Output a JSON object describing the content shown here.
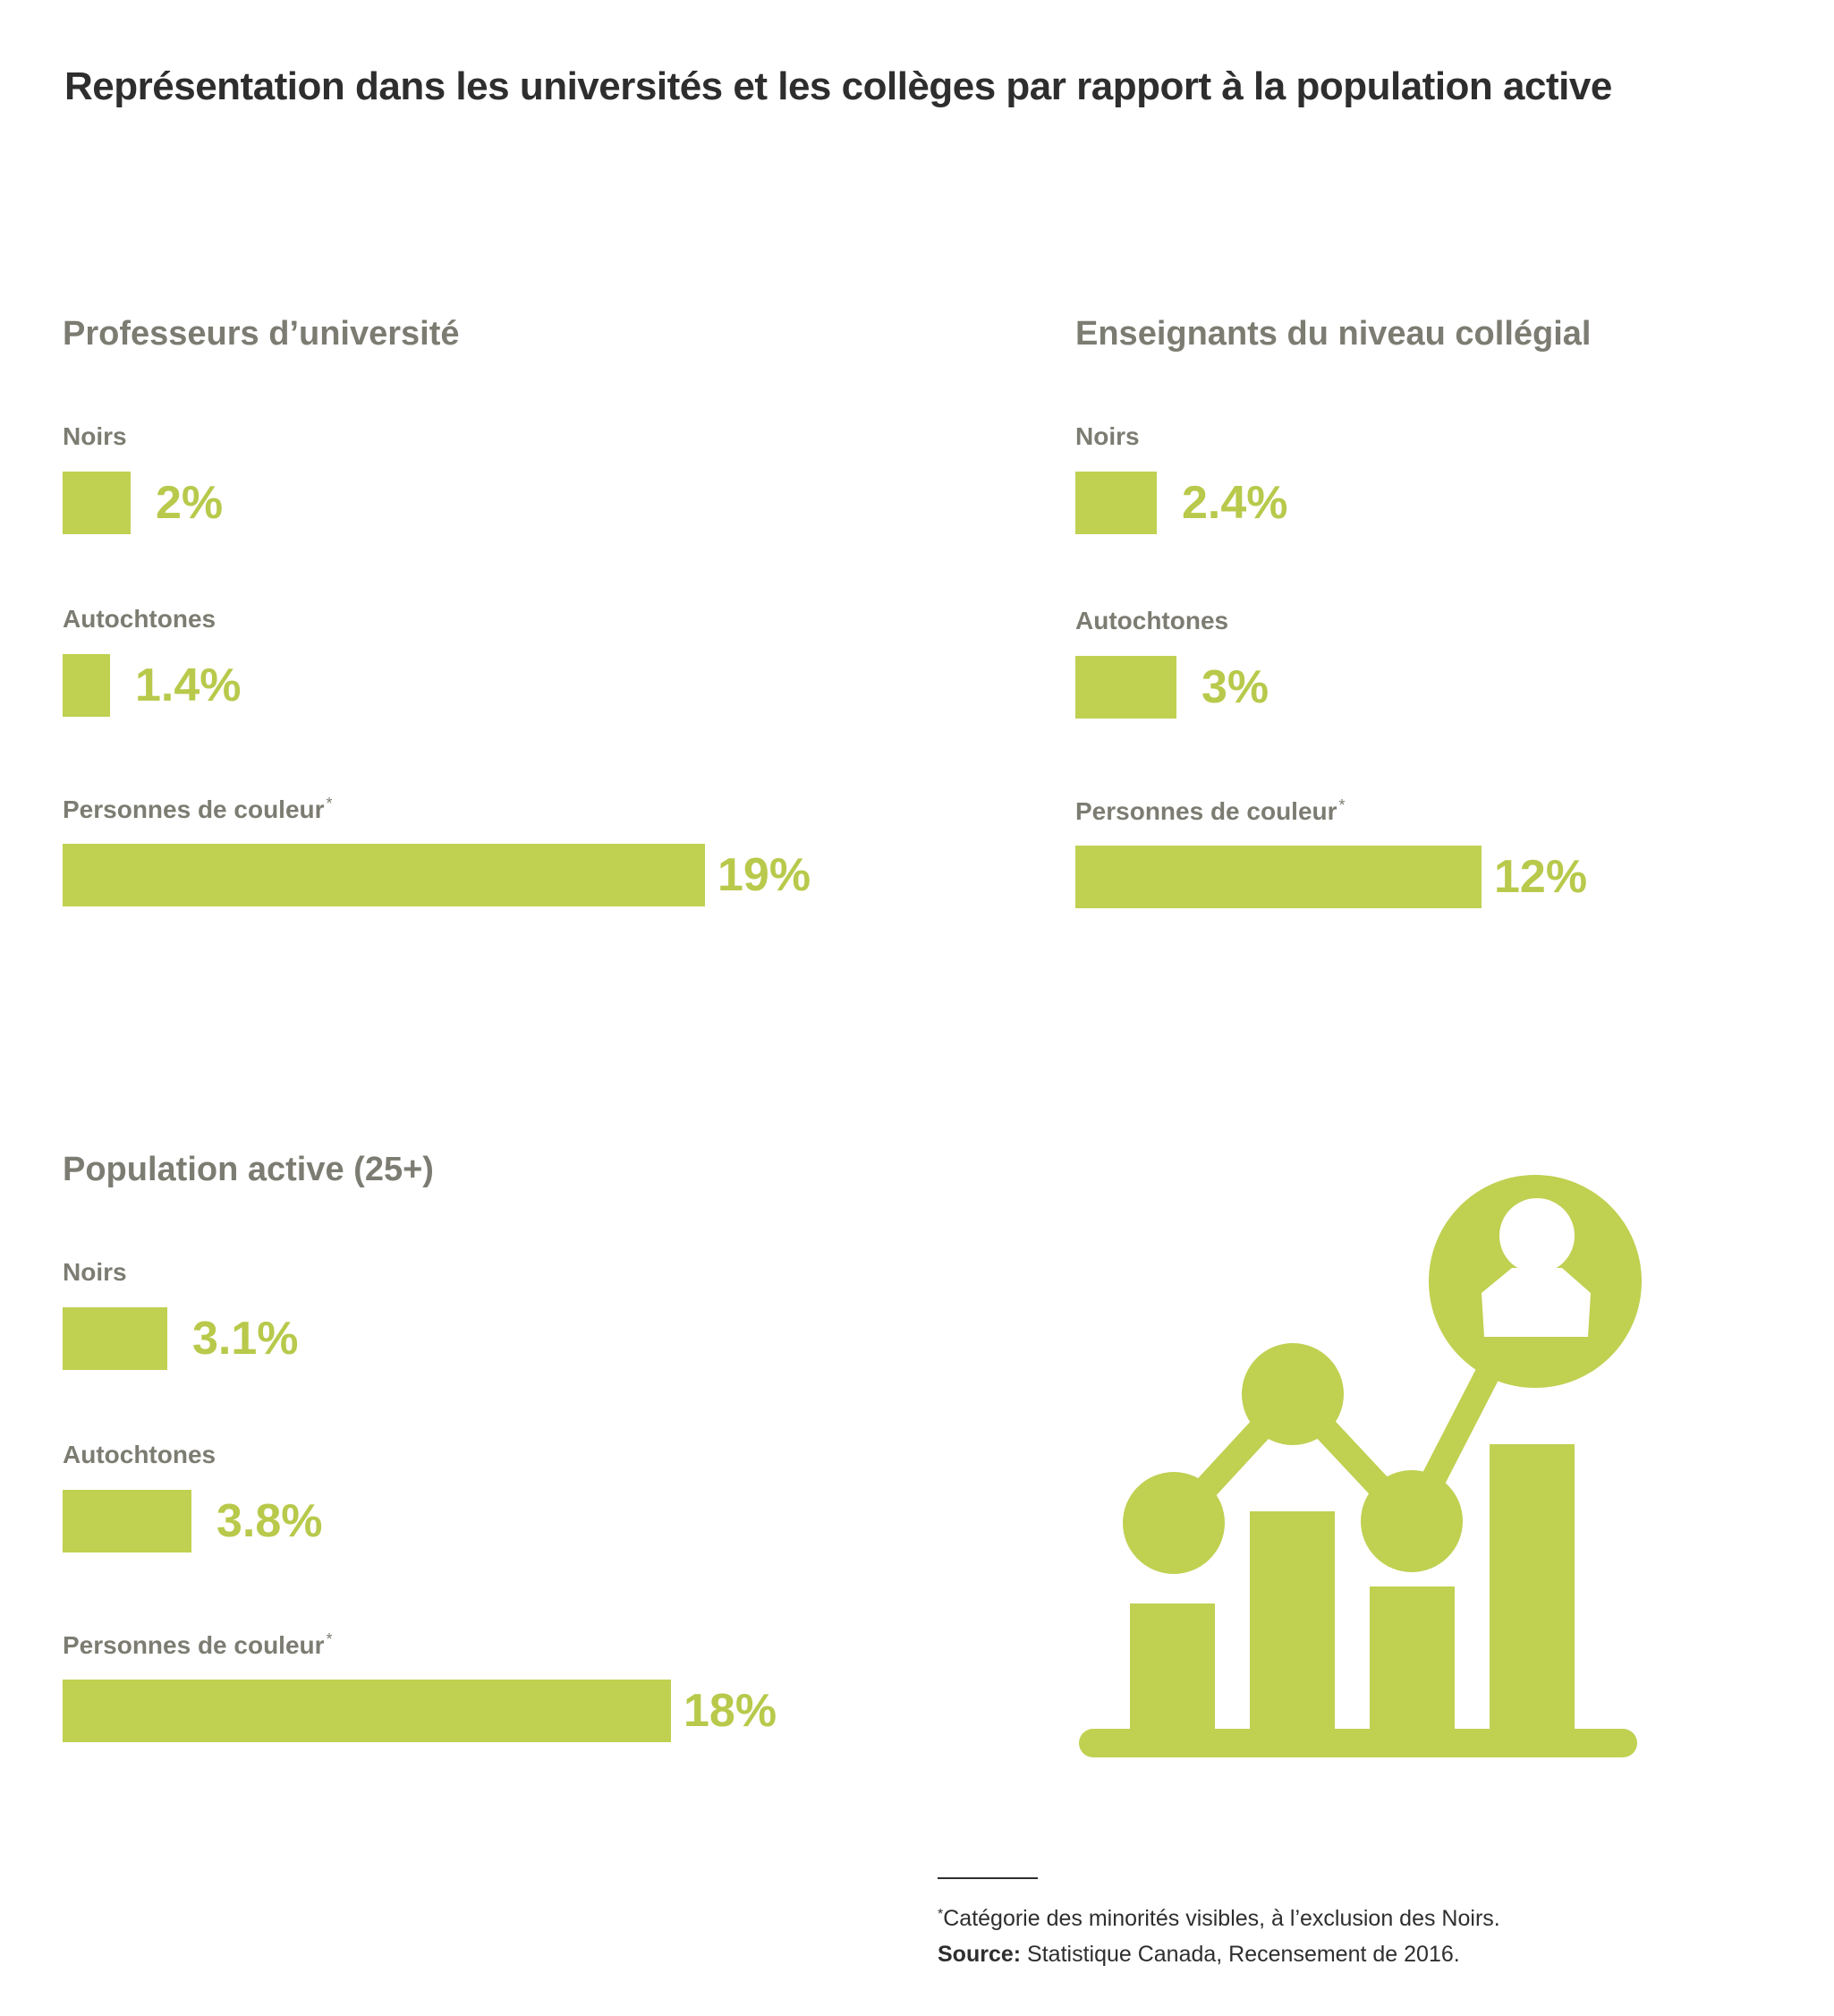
{
  "title": "Représentation dans les universités et les collèges par rapport à la population active",
  "colors": {
    "bar": "#c0d051",
    "value_text": "#b8c94b",
    "label_text": "#7c7c72",
    "title_text": "#2e2e2e"
  },
  "chart_data": [
    {
      "type": "bar",
      "orientation": "horizontal",
      "title": "Professeurs d’université",
      "categories": [
        "Noirs",
        "Autochtones",
        "Personnes de couleur"
      ],
      "values": [
        2,
        1.4,
        19
      ],
      "value_labels": [
        "2%",
        "1.4%",
        "19%"
      ],
      "footnote_marks": [
        "",
        "",
        "*"
      ]
    },
    {
      "type": "bar",
      "orientation": "horizontal",
      "title": "Enseignants du niveau collégial",
      "categories": [
        "Noirs",
        "Autochtones",
        "Personnes de couleur"
      ],
      "values": [
        2.4,
        3,
        12
      ],
      "value_labels": [
        "2.4%",
        "3%",
        "12%"
      ],
      "footnote_marks": [
        "",
        "",
        "*"
      ]
    },
    {
      "type": "bar",
      "orientation": "horizontal",
      "title": "Population active (25+)",
      "categories": [
        "Noirs",
        "Autochtones",
        "Personnes de couleur"
      ],
      "values": [
        3.1,
        3.8,
        18
      ],
      "value_labels": [
        "3.1%",
        "3.8%",
        "18%"
      ],
      "footnote_marks": [
        "",
        "",
        "*"
      ]
    }
  ],
  "icon": {
    "name": "growth-chart-person-icon"
  },
  "footnote": {
    "mark": "*",
    "text": "Catégorie des minorités visibles, à l’exclusion des Noirs.",
    "source_label": "Source:",
    "source_text": " Statistique Canada, Recensement de 2016."
  }
}
